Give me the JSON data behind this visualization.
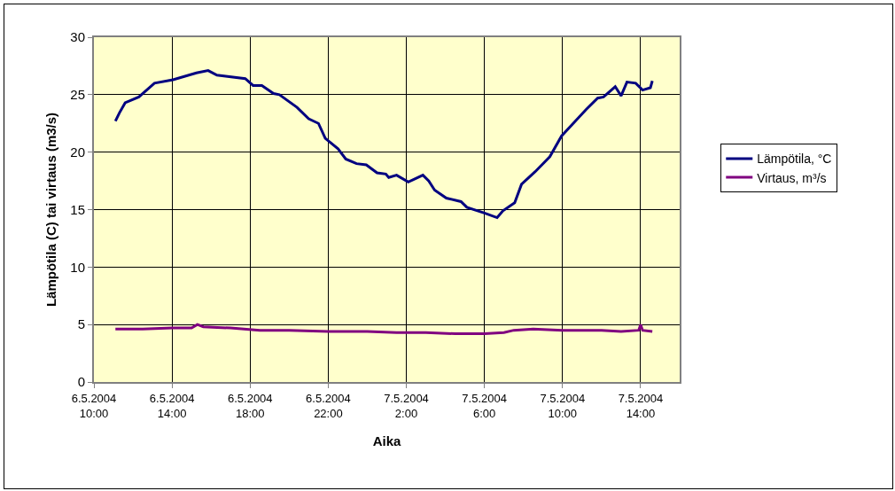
{
  "chart_data": {
    "type": "line",
    "xlabel": "Aika",
    "ylabel": "Lämpötila (C) tai virtaus (m3/s)",
    "xlim": [
      "2004-05-06T10:00",
      "2004-05-07T16:00"
    ],
    "xticks": [
      {
        "value": "2004-05-06T10:00",
        "label": "6.5.2004\n10:00"
      },
      {
        "value": "2004-05-06T14:00",
        "label": "6.5.2004\n14:00"
      },
      {
        "value": "2004-05-06T18:00",
        "label": "6.5.2004\n18:00"
      },
      {
        "value": "2004-05-06T22:00",
        "label": "6.5.2004\n22:00"
      },
      {
        "value": "2004-05-07T02:00",
        "label": "7.5.2004\n2:00"
      },
      {
        "value": "2004-05-07T06:00",
        "label": "7.5.2004\n6:00"
      },
      {
        "value": "2004-05-07T10:00",
        "label": "7.5.2004\n10:00"
      },
      {
        "value": "2004-05-07T14:00",
        "label": "7.5.2004\n14:00"
      }
    ],
    "ylim": [
      0,
      30
    ],
    "yticks": [
      0,
      5,
      10,
      15,
      20,
      25,
      30
    ],
    "grid": true,
    "legend": "right",
    "marker": "none",
    "line_style": "solid",
    "series": [
      {
        "name": "Lämpötila, °C",
        "color": "#000080",
        "x": [
          "2004-05-06T11:06",
          "2004-05-06T11:18",
          "2004-05-06T11:36",
          "2004-05-06T12:18",
          "2004-05-06T13:06",
          "2004-05-06T14:03",
          "2004-05-06T15:15",
          "2004-05-06T15:51",
          "2004-05-06T16:18",
          "2004-05-06T16:45",
          "2004-05-06T17:45",
          "2004-05-06T18:09",
          "2004-05-06T18:36",
          "2004-05-06T19:12",
          "2004-05-06T19:30",
          "2004-05-06T20:24",
          "2004-05-06T21:00",
          "2004-05-06T21:30",
          "2004-05-06T21:51",
          "2004-05-06T22:30",
          "2004-05-06T22:54",
          "2004-05-06T23:27",
          "2004-05-06T23:57",
          "2004-05-07T00:30",
          "2004-05-07T00:57",
          "2004-05-07T01:06",
          "2004-05-07T01:30",
          "2004-05-07T02:06",
          "2004-05-07T02:51",
          "2004-05-07T03:09",
          "2004-05-07T03:27",
          "2004-05-07T04:03",
          "2004-05-07T04:48",
          "2004-05-07T05:06",
          "2004-05-07T06:00",
          "2004-05-07T06:39",
          "2004-05-07T06:57",
          "2004-05-07T07:33",
          "2004-05-07T07:54",
          "2004-05-07T08:36",
          "2004-05-07T09:21",
          "2004-05-07T09:57",
          "2004-05-07T10:36",
          "2004-05-07T11:12",
          "2004-05-07T11:48",
          "2004-05-07T12:06",
          "2004-05-07T12:42",
          "2004-05-07T13:00",
          "2004-05-07T13:18",
          "2004-05-07T13:45",
          "2004-05-07T14:06",
          "2004-05-07T14:30",
          "2004-05-07T14:36"
        ],
        "values": [
          22.7,
          23.4,
          24.3,
          24.8,
          26.0,
          26.3,
          26.9,
          27.1,
          26.7,
          26.6,
          26.4,
          25.8,
          25.8,
          25.1,
          25.0,
          23.9,
          22.9,
          22.5,
          21.2,
          20.3,
          19.4,
          19.0,
          18.9,
          18.2,
          18.1,
          17.8,
          18.0,
          17.4,
          18.0,
          17.5,
          16.7,
          16.0,
          15.7,
          15.2,
          14.7,
          14.3,
          14.9,
          15.6,
          17.2,
          18.3,
          19.6,
          21.4,
          22.6,
          23.7,
          24.7,
          24.8,
          25.7,
          24.9,
          26.1,
          26.0,
          25.4,
          25.6,
          26.2
        ]
      },
      {
        "name": "Virtaus, m³/s",
        "color": "#800080",
        "x": [
          "2004-05-06T11:06",
          "2004-05-06T12:30",
          "2004-05-06T14:00",
          "2004-05-06T15:00",
          "2004-05-06T15:18",
          "2004-05-06T15:36",
          "2004-05-06T17:00",
          "2004-05-06T18:30",
          "2004-05-06T20:00",
          "2004-05-06T22:00",
          "2004-05-07T00:00",
          "2004-05-07T01:30",
          "2004-05-07T03:00",
          "2004-05-07T04:30",
          "2004-05-07T06:00",
          "2004-05-07T07:00",
          "2004-05-07T07:30",
          "2004-05-07T08:30",
          "2004-05-07T10:00",
          "2004-05-07T12:00",
          "2004-05-07T13:00",
          "2004-05-07T13:54",
          "2004-05-07T14:00",
          "2004-05-07T14:06",
          "2004-05-07T14:36"
        ],
        "values": [
          4.6,
          4.6,
          4.7,
          4.7,
          5.0,
          4.8,
          4.7,
          4.5,
          4.5,
          4.4,
          4.4,
          4.3,
          4.3,
          4.2,
          4.2,
          4.3,
          4.5,
          4.6,
          4.5,
          4.5,
          4.4,
          4.5,
          5.0,
          4.5,
          4.4
        ]
      }
    ]
  }
}
